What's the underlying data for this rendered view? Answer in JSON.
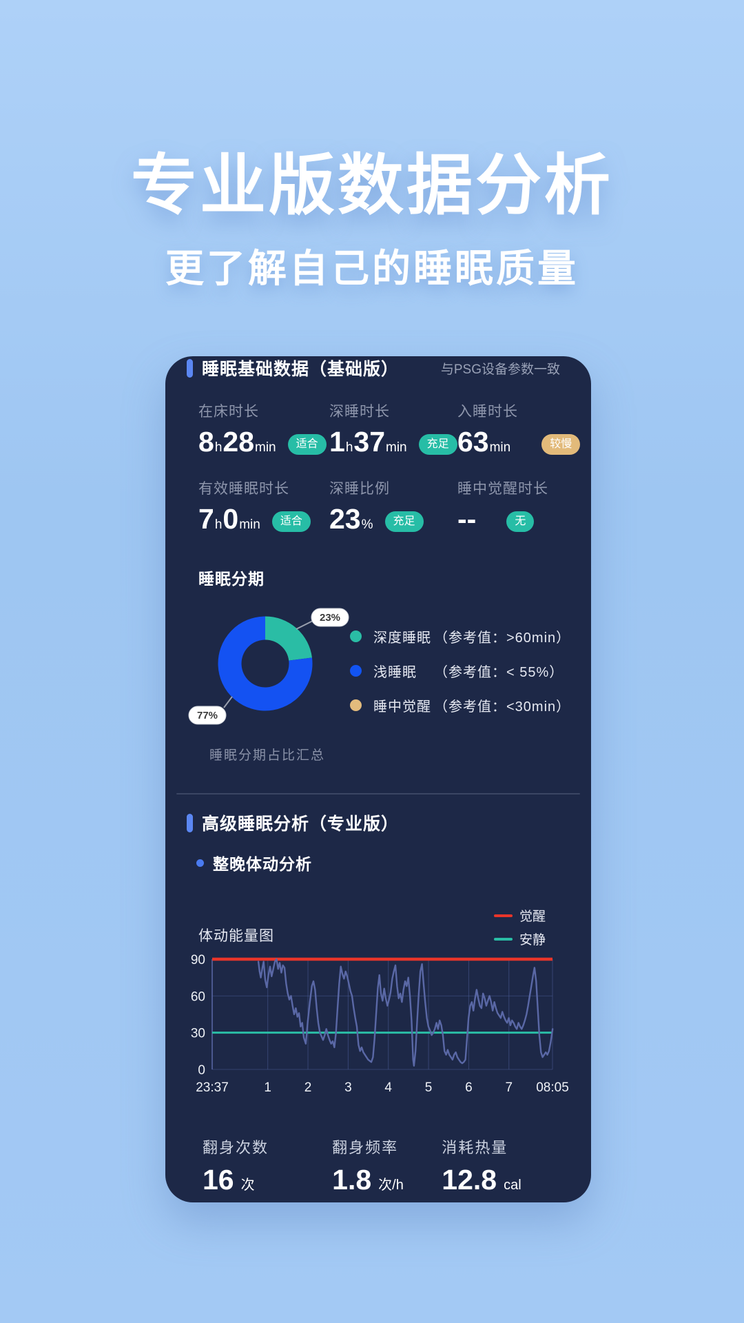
{
  "page": {
    "title": "专业版数据分析",
    "subtitle": "更了解自己的睡眠质量"
  },
  "basic": {
    "title": "睡眠基础数据（基础版）",
    "note": "与PSG设备参数一致",
    "stats": [
      {
        "label": "在床时长",
        "parts": [
          [
            "8",
            "b"
          ],
          [
            "h",
            "s"
          ],
          [
            "28",
            "b"
          ],
          [
            "min",
            "s"
          ]
        ],
        "badge": "适合",
        "badge_type": "teal"
      },
      {
        "label": "深睡时长",
        "parts": [
          [
            "1",
            "b"
          ],
          [
            "h",
            "s"
          ],
          [
            "37",
            "b"
          ],
          [
            "min",
            "s"
          ]
        ],
        "badge": "充足",
        "badge_type": "teal"
      },
      {
        "label": "入睡时长",
        "parts": [
          [
            "63",
            "b"
          ],
          [
            "min",
            "s"
          ]
        ],
        "badge": "较慢",
        "badge_type": "tan"
      },
      {
        "label": "有效睡眠时长",
        "parts": [
          [
            "7",
            "b"
          ],
          [
            "h",
            "s"
          ],
          [
            "0",
            "b"
          ],
          [
            "min",
            "s"
          ]
        ],
        "badge": "适合",
        "badge_type": "teal"
      },
      {
        "label": "深睡比例",
        "parts": [
          [
            "23",
            "b"
          ],
          [
            "%",
            "s"
          ]
        ],
        "badge": "充足",
        "badge_type": "teal"
      },
      {
        "label": "睡中觉醒时长",
        "parts": [
          [
            "--",
            "b"
          ]
        ],
        "badge": "无",
        "badge_type": "teal"
      }
    ],
    "stages_title": "睡眠分期",
    "caption": "睡眠分期占比汇总",
    "legend": [
      {
        "name": "深度睡眠",
        "ref": "（参考值：>60min）",
        "color": "#2abda5"
      },
      {
        "name": "浅睡眠",
        "ref": "（参考值：< 55%）",
        "color": "#1254f2"
      },
      {
        "name": "睡中觉醒",
        "ref": "（参考值：<30min）",
        "color": "#e2bb7d"
      }
    ]
  },
  "advanced": {
    "title": "高级睡眠分析（专业版）",
    "bullet": "整晚体动分析",
    "chart_title": "体动能量图",
    "chart_legend": [
      {
        "label": "觉醒",
        "color": "#e8352a"
      },
      {
        "label": "安静",
        "color": "#2abda5"
      }
    ],
    "footer_stats": [
      {
        "label": "翻身次数",
        "value": "16",
        "unit": "次"
      },
      {
        "label": "翻身频率",
        "value": "1.8",
        "unit": "次/h"
      },
      {
        "label": "消耗热量",
        "value": "12.8",
        "unit": "cal"
      }
    ]
  },
  "chart_data": [
    {
      "type": "pie",
      "title": "睡眠分期",
      "donut": true,
      "start": "top",
      "direction": "clockwise",
      "slices": [
        {
          "label": "深度睡眠",
          "value": 23,
          "color": "#2abda5"
        },
        {
          "label": "浅睡眠",
          "value": 77,
          "color": "#1452f2"
        }
      ],
      "callouts": [
        "23%",
        "77%"
      ],
      "caption": "睡眠分期占比汇总"
    },
    {
      "type": "line",
      "title": "体动能量图",
      "ylim": [
        0,
        90
      ],
      "yticks": [
        0,
        30,
        60,
        90
      ],
      "xlim": [
        0,
        8.467
      ],
      "x_ticks": [
        {
          "t": 0,
          "label": "23:37"
        },
        {
          "t": 1.383,
          "label": "1"
        },
        {
          "t": 2.383,
          "label": "2"
        },
        {
          "t": 3.383,
          "label": "3"
        },
        {
          "t": 4.383,
          "label": "4"
        },
        {
          "t": 5.383,
          "label": "5"
        },
        {
          "t": 6.383,
          "label": "6"
        },
        {
          "t": 7.383,
          "label": "7"
        },
        {
          "t": 8.467,
          "label": "08:05"
        }
      ],
      "grid": true,
      "thresholds": [
        {
          "label": "觉醒",
          "value": 90,
          "color": "#e8352a"
        },
        {
          "label": "安静",
          "value": 30,
          "color": "#2abda5"
        }
      ],
      "series": [
        {
          "name": "体动能量",
          "color": "#5a68a6",
          "points": [
            [
              1.15,
              88
            ],
            [
              1.18,
              80
            ],
            [
              1.21,
              75
            ],
            [
              1.25,
              83
            ],
            [
              1.28,
              88
            ],
            [
              1.32,
              73
            ],
            [
              1.36,
              67
            ],
            [
              1.4,
              77
            ],
            [
              1.44,
              84
            ],
            [
              1.48,
              76
            ],
            [
              1.52,
              82
            ],
            [
              1.56,
              88
            ],
            [
              1.6,
              90
            ],
            [
              1.64,
              82
            ],
            [
              1.68,
              87
            ],
            [
              1.72,
              79
            ],
            [
              1.76,
              85
            ],
            [
              1.8,
              83
            ],
            [
              1.84,
              70
            ],
            [
              1.88,
              62
            ],
            [
              1.92,
              57
            ],
            [
              1.96,
              60
            ],
            [
              2.0,
              52
            ],
            [
              2.04,
              45
            ],
            [
              2.08,
              50
            ],
            [
              2.12,
              43
            ],
            [
              2.16,
              46
            ],
            [
              2.2,
              35
            ],
            [
              2.24,
              38
            ],
            [
              2.28,
              26
            ],
            [
              2.33,
              21
            ],
            [
              2.38,
              40
            ],
            [
              2.43,
              55
            ],
            [
              2.48,
              68
            ],
            [
              2.52,
              72
            ],
            [
              2.56,
              65
            ],
            [
              2.6,
              50
            ],
            [
              2.64,
              38
            ],
            [
              2.68,
              30
            ],
            [
              2.72,
              27
            ],
            [
              2.76,
              24
            ],
            [
              2.8,
              28
            ],
            [
              2.84,
              33
            ],
            [
              2.88,
              28
            ],
            [
              2.92,
              24
            ],
            [
              2.96,
              21
            ],
            [
              3.0,
              23
            ],
            [
              3.04,
              18
            ],
            [
              3.08,
              30
            ],
            [
              3.12,
              50
            ],
            [
              3.16,
              70
            ],
            [
              3.2,
              84
            ],
            [
              3.24,
              78
            ],
            [
              3.28,
              74
            ],
            [
              3.32,
              80
            ],
            [
              3.36,
              76
            ],
            [
              3.4,
              70
            ],
            [
              3.44,
              64
            ],
            [
              3.48,
              60
            ],
            [
              3.52,
              50
            ],
            [
              3.56,
              42
            ],
            [
              3.6,
              35
            ],
            [
              3.64,
              20
            ],
            [
              3.68,
              15
            ],
            [
              3.72,
              18
            ],
            [
              3.76,
              14
            ],
            [
              3.8,
              12
            ],
            [
              3.84,
              10
            ],
            [
              3.88,
              8
            ],
            [
              3.92,
              7
            ],
            [
              3.96,
              6
            ],
            [
              4.0,
              10
            ],
            [
              4.04,
              25
            ],
            [
              4.08,
              45
            ],
            [
              4.12,
              66
            ],
            [
              4.16,
              77
            ],
            [
              4.2,
              62
            ],
            [
              4.24,
              56
            ],
            [
              4.28,
              66
            ],
            [
              4.32,
              58
            ],
            [
              4.36,
              52
            ],
            [
              4.4,
              57
            ],
            [
              4.44,
              63
            ],
            [
              4.48,
              74
            ],
            [
              4.52,
              80
            ],
            [
              4.56,
              85
            ],
            [
              4.6,
              68
            ],
            [
              4.64,
              58
            ],
            [
              4.68,
              62
            ],
            [
              4.72,
              55
            ],
            [
              4.76,
              65
            ],
            [
              4.8,
              72
            ],
            [
              4.84,
              68
            ],
            [
              4.88,
              75
            ],
            [
              4.92,
              60
            ],
            [
              4.96,
              40
            ],
            [
              5.0,
              8
            ],
            [
              5.02,
              3
            ],
            [
              5.06,
              15
            ],
            [
              5.1,
              40
            ],
            [
              5.14,
              62
            ],
            [
              5.18,
              80
            ],
            [
              5.22,
              86
            ],
            [
              5.26,
              70
            ],
            [
              5.3,
              55
            ],
            [
              5.34,
              42
            ],
            [
              5.38,
              35
            ],
            [
              5.42,
              32
            ],
            [
              5.46,
              28
            ],
            [
              5.5,
              30
            ],
            [
              5.54,
              33
            ],
            [
              5.58,
              38
            ],
            [
              5.62,
              33
            ],
            [
              5.66,
              40
            ],
            [
              5.7,
              36
            ],
            [
              5.74,
              28
            ],
            [
              5.78,
              15
            ],
            [
              5.82,
              12
            ],
            [
              5.86,
              16
            ],
            [
              5.9,
              12
            ],
            [
              5.94,
              10
            ],
            [
              5.98,
              8
            ],
            [
              6.02,
              12
            ],
            [
              6.06,
              14
            ],
            [
              6.1,
              10
            ],
            [
              6.14,
              8
            ],
            [
              6.18,
              6
            ],
            [
              6.22,
              5
            ],
            [
              6.26,
              6
            ],
            [
              6.3,
              8
            ],
            [
              6.34,
              25
            ],
            [
              6.38,
              42
            ],
            [
              6.42,
              52
            ],
            [
              6.46,
              55
            ],
            [
              6.5,
              48
            ],
            [
              6.54,
              58
            ],
            [
              6.58,
              65
            ],
            [
              6.62,
              58
            ],
            [
              6.66,
              52
            ],
            [
              6.7,
              50
            ],
            [
              6.74,
              62
            ],
            [
              6.78,
              58
            ],
            [
              6.82,
              52
            ],
            [
              6.86,
              56
            ],
            [
              6.9,
              60
            ],
            [
              6.94,
              55
            ],
            [
              6.98,
              48
            ],
            [
              7.02,
              55
            ],
            [
              7.06,
              50
            ],
            [
              7.1,
              46
            ],
            [
              7.14,
              44
            ],
            [
              7.18,
              42
            ],
            [
              7.22,
              47
            ],
            [
              7.26,
              43
            ],
            [
              7.3,
              40
            ],
            [
              7.34,
              38
            ],
            [
              7.38,
              42
            ],
            [
              7.42,
              36
            ],
            [
              7.46,
              40
            ],
            [
              7.5,
              38
            ],
            [
              7.54,
              35
            ],
            [
              7.58,
              33
            ],
            [
              7.62,
              38
            ],
            [
              7.66,
              35
            ],
            [
              7.7,
              33
            ],
            [
              7.74,
              36
            ],
            [
              7.78,
              40
            ],
            [
              7.82,
              45
            ],
            [
              7.86,
              52
            ],
            [
              7.9,
              60
            ],
            [
              7.94,
              68
            ],
            [
              7.98,
              76
            ],
            [
              8.02,
              83
            ],
            [
              8.06,
              72
            ],
            [
              8.1,
              50
            ],
            [
              8.14,
              28
            ],
            [
              8.18,
              14
            ],
            [
              8.22,
              10
            ],
            [
              8.26,
              12
            ],
            [
              8.3,
              14
            ],
            [
              8.34,
              12
            ],
            [
              8.38,
              15
            ],
            [
              8.42,
              22
            ],
            [
              8.47,
              33
            ]
          ]
        }
      ]
    }
  ],
  "colors": {
    "card_bg": "#1d2847",
    "accent_blue": "#5b87f3",
    "teal": "#27bda6",
    "tan": "#e2ba7a",
    "donut_blue": "#1452f2",
    "line_series": "#5a68a6",
    "wake_red": "#e8352a",
    "calm_teal": "#2abda5"
  }
}
